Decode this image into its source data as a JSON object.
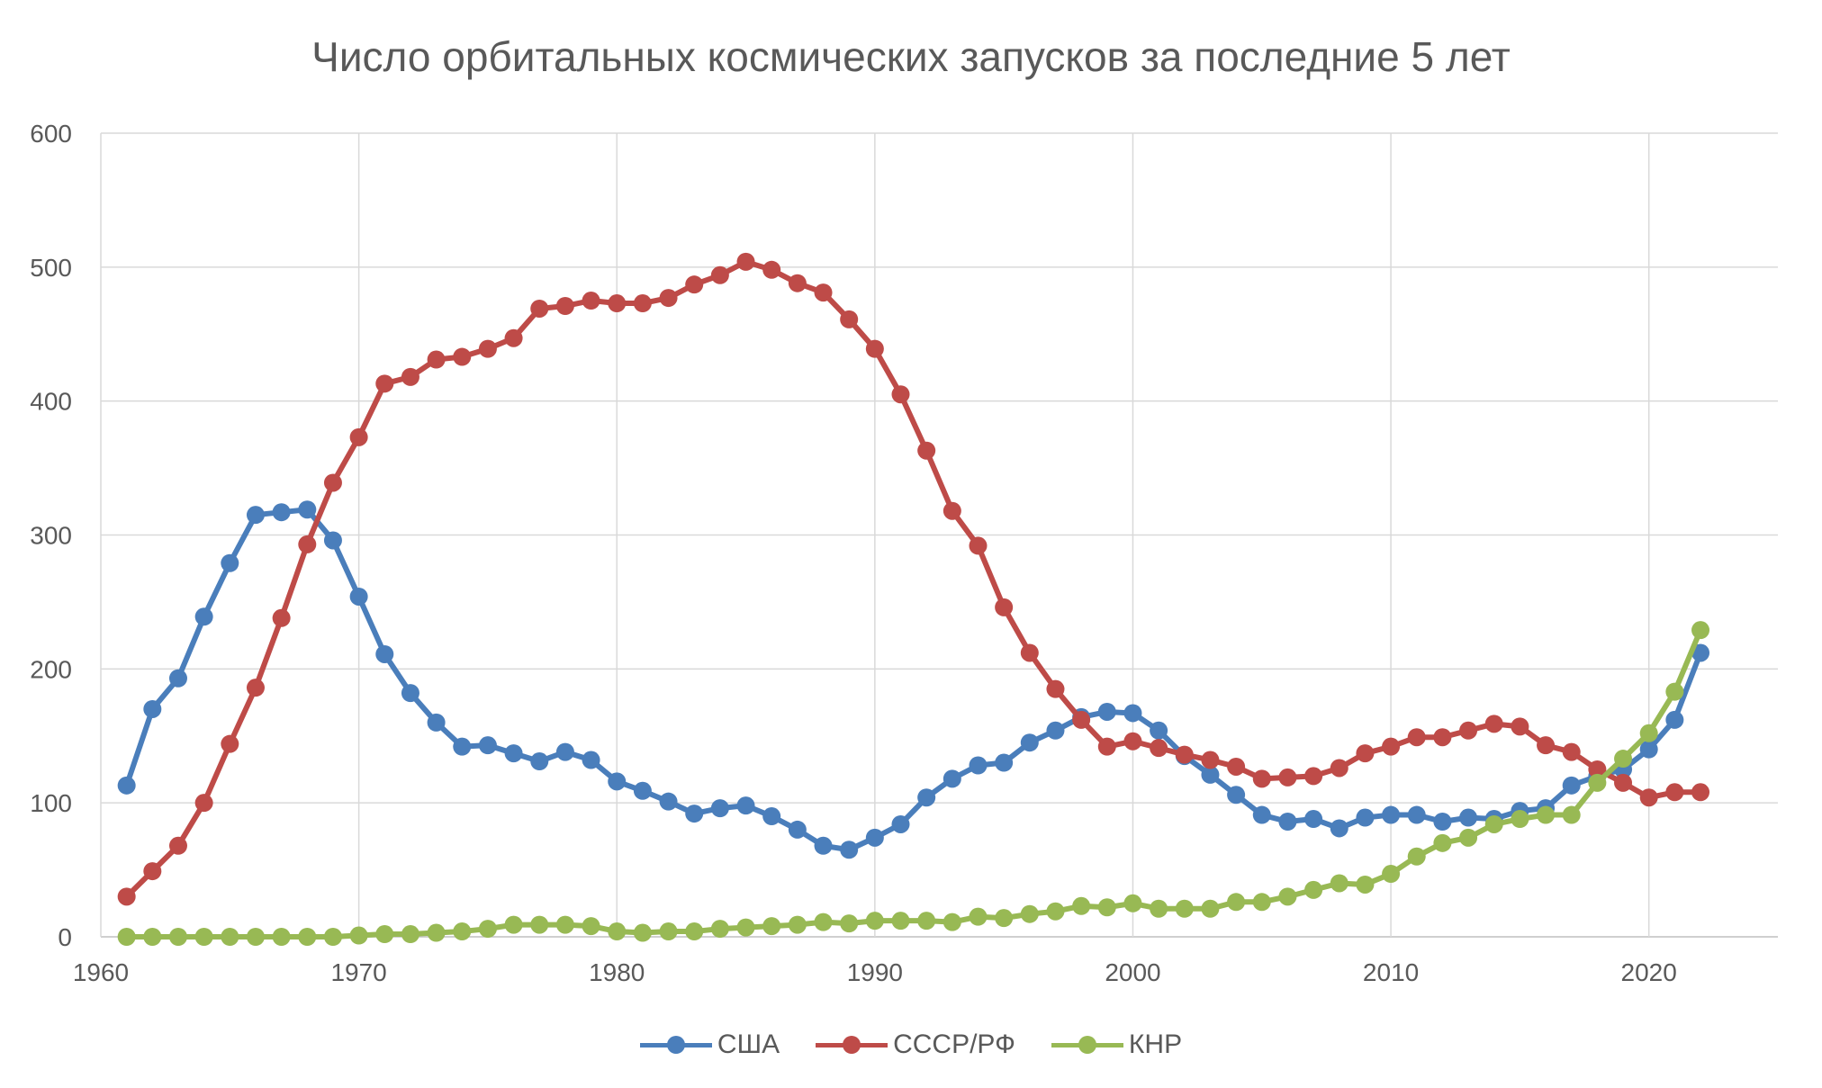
{
  "chart_data": {
    "type": "line",
    "title": "Число орбитальных космических запусков за последние 5 лет",
    "xlabel": "",
    "ylabel": "",
    "xlim": [
      1960,
      2025
    ],
    "ylim": [
      0,
      600
    ],
    "x_ticks": [
      1960,
      1970,
      1980,
      1990,
      2000,
      2010,
      2020
    ],
    "y_ticks": [
      0,
      100,
      200,
      300,
      400,
      500,
      600
    ],
    "grid": true,
    "legend_position": "bottom",
    "x_start": 1961,
    "series": [
      {
        "name": "США",
        "color": "#4a7ebb",
        "values": [
          113,
          170,
          193,
          239,
          279,
          315,
          317,
          319,
          296,
          254,
          211,
          182,
          160,
          142,
          143,
          137,
          131,
          138,
          132,
          116,
          109,
          101,
          92,
          96,
          98,
          90,
          80,
          68,
          65,
          74,
          84,
          104,
          118,
          128,
          130,
          145,
          154,
          164,
          168,
          167,
          154,
          135,
          121,
          106,
          91,
          86,
          88,
          81,
          89,
          91,
          91,
          86,
          89,
          88,
          94,
          96,
          113,
          120,
          125,
          140,
          162,
          212
        ]
      },
      {
        "name": "СССР/РФ",
        "color": "#be4b48",
        "values": [
          30,
          49,
          68,
          100,
          144,
          186,
          238,
          293,
          339,
          373,
          413,
          418,
          431,
          433,
          439,
          447,
          469,
          471,
          475,
          473,
          473,
          477,
          487,
          494,
          504,
          498,
          488,
          481,
          461,
          439,
          405,
          363,
          318,
          292,
          246,
          212,
          185,
          162,
          142,
          146,
          141,
          136,
          132,
          127,
          118,
          119,
          120,
          126,
          137,
          142,
          149,
          149,
          154,
          159,
          157,
          143,
          138,
          125,
          115,
          104,
          108,
          108
        ]
      },
      {
        "name": "КНР",
        "color": "#98b954",
        "values": [
          0,
          0,
          0,
          0,
          0,
          0,
          0,
          0,
          0,
          1,
          2,
          2,
          3,
          4,
          6,
          9,
          9,
          9,
          8,
          4,
          3,
          4,
          4,
          6,
          7,
          8,
          9,
          11,
          10,
          12,
          12,
          12,
          11,
          15,
          14,
          17,
          19,
          23,
          22,
          25,
          21,
          21,
          21,
          26,
          26,
          30,
          35,
          40,
          39,
          47,
          60,
          70,
          74,
          84,
          88,
          91,
          91,
          115,
          133,
          152,
          183,
          229
        ]
      }
    ]
  }
}
